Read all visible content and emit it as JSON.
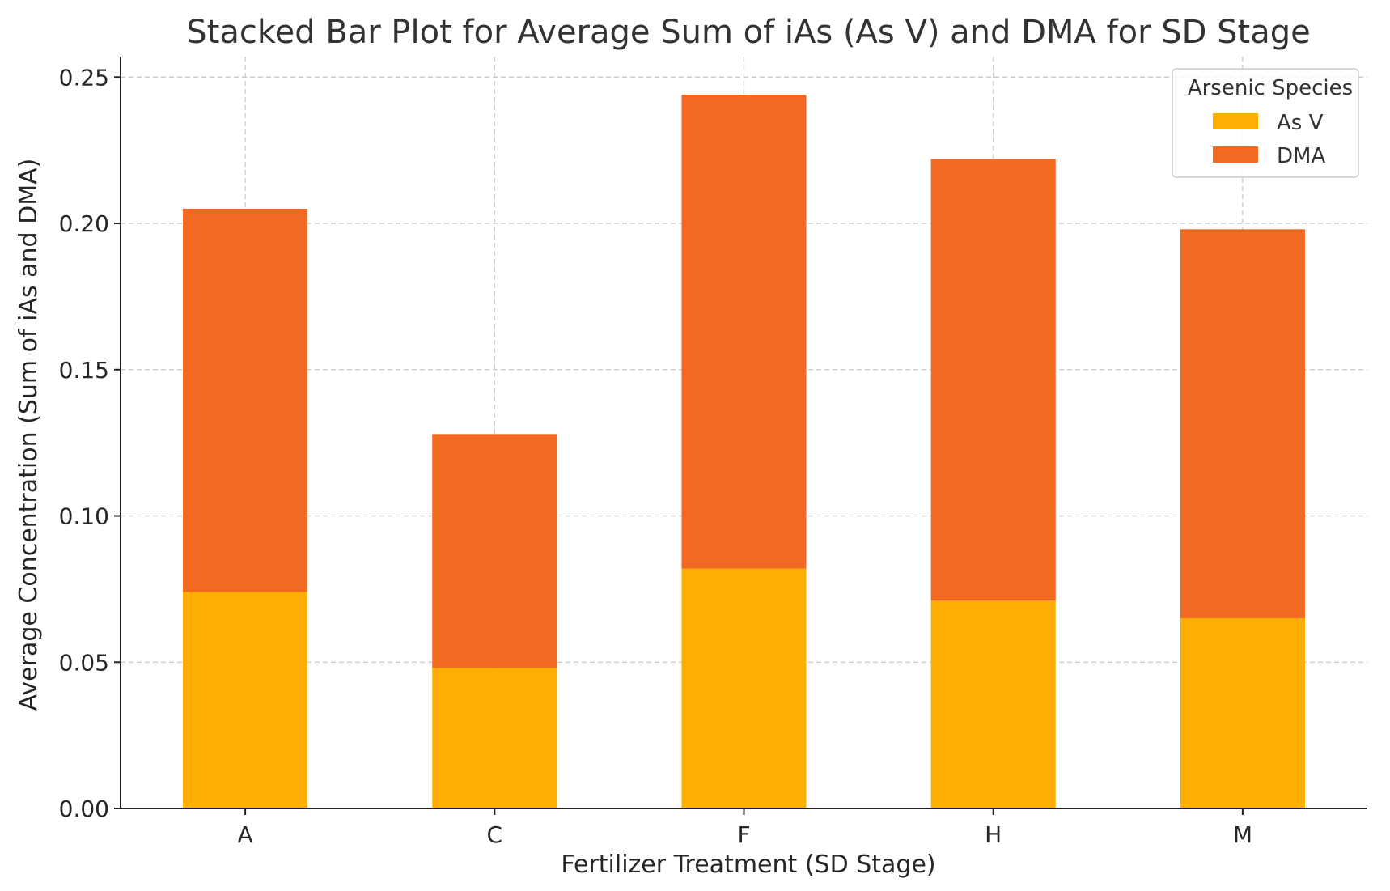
{
  "chart_data": {
    "type": "bar",
    "stacked": true,
    "title": "Stacked Bar Plot for Average Sum of iAs (As V) and DMA for SD Stage",
    "xlabel": "Fertilizer Treatment (SD Stage)",
    "ylabel": "Average Concentration (Sum of iAs and DMA)",
    "categories": [
      "A",
      "C",
      "F",
      "H",
      "M"
    ],
    "series": [
      {
        "name": "As V",
        "values": [
          0.074,
          0.048,
          0.082,
          0.071,
          0.065
        ],
        "color": "#FDAE03"
      },
      {
        "name": "DMA",
        "values": [
          0.131,
          0.08,
          0.162,
          0.151,
          0.133
        ],
        "color": "#F26A21"
      }
    ],
    "ylim": [
      0,
      0.257
    ],
    "yticks": [
      0.0,
      0.05,
      0.1,
      0.15,
      0.2,
      0.25
    ],
    "ytick_labels": [
      "0.00",
      "0.05",
      "0.10",
      "0.15",
      "0.20",
      "0.25"
    ],
    "grid": true,
    "legend": {
      "title": "Arsenic Species",
      "placement": "top-right"
    }
  }
}
